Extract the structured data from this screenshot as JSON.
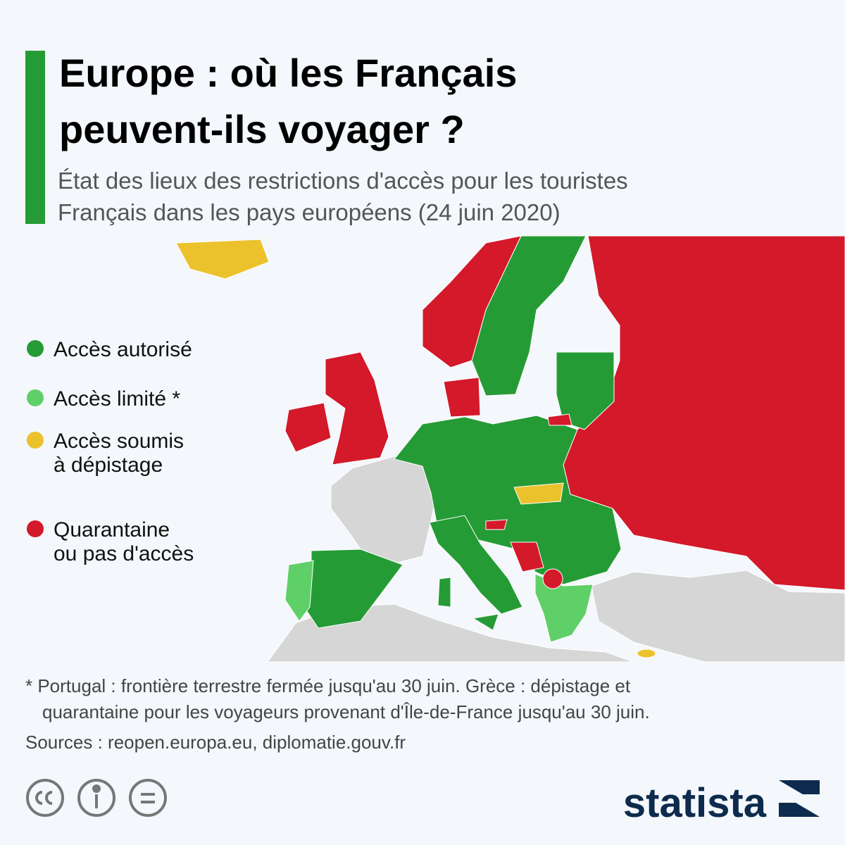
{
  "header": {
    "title": [
      "Europe : où les Français",
      "peuvent-ils voyager ?"
    ],
    "subtitle": [
      "État des lieux des restrictions d'accès pour les touristes",
      "Français dans les pays européens (24 juin 2020)"
    ]
  },
  "legend": [
    {
      "label": [
        "Accès autorisé"
      ],
      "color": "#259b35"
    },
    {
      "label": [
        "Accès limité *"
      ],
      "color": "#5fd068"
    },
    {
      "label": [
        "Accès soumis",
        "à dépistage"
      ],
      "color": "#ecc22c"
    },
    {
      "label": [
        "Quarantaine",
        "ou pas d'accès"
      ],
      "color": "#d3192a"
    }
  ],
  "footnote": [
    "* Portugal : frontière terrestre fermée jusqu'au 30 juin. Grèce : dépistage et",
    "quarantaine pour les voyageurs provenant d'Île-de-France jusqu'au 30 juin."
  ],
  "sources": "Sources : reopen.europa.eu, diplomatie.gouv.fr",
  "brand": "statista"
}
